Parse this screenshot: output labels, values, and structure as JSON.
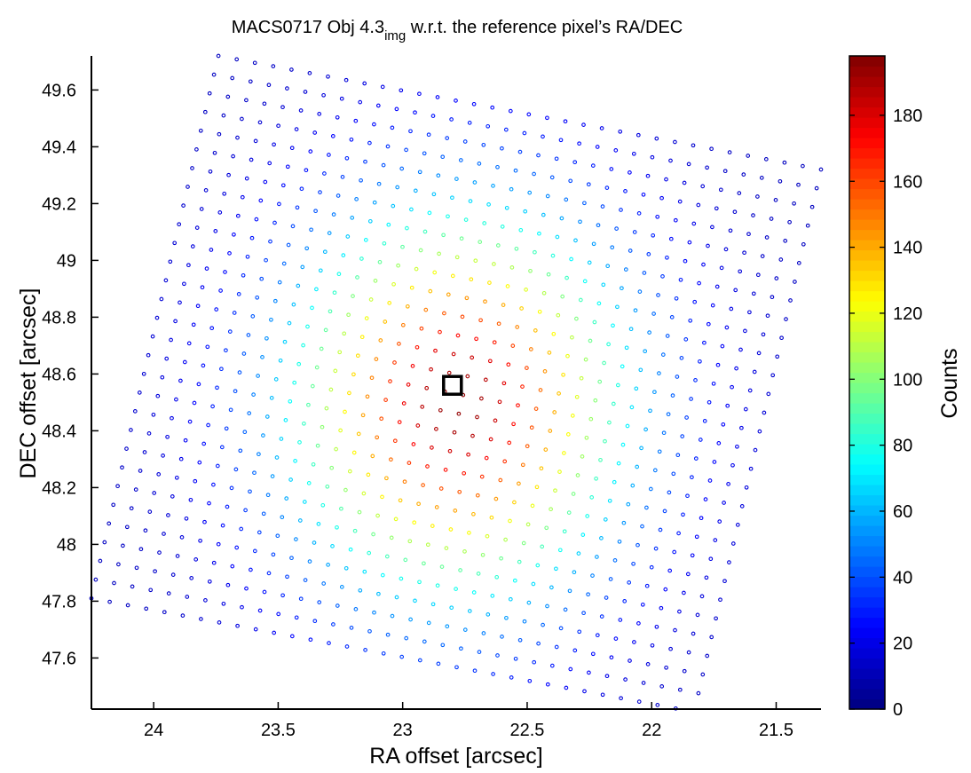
{
  "chart_data": {
    "type": "scatter",
    "title": {
      "main": "MACS0717 Obj 4.3",
      "subscript": "img",
      "suffix": " w.r.t. the reference pixel’s RA/DEC"
    },
    "xlabel": "RA offset [arcsec]",
    "ylabel": "DEC offset [arcsec]",
    "xlim": [
      24.25,
      21.32
    ],
    "ylim": [
      47.42,
      49.72
    ],
    "x_reversed": true,
    "x_ticks": [
      {
        "value": 24,
        "label": "24"
      },
      {
        "value": 23.5,
        "label": "23.5"
      },
      {
        "value": 23,
        "label": "23"
      },
      {
        "value": 22.5,
        "label": "22.5"
      },
      {
        "value": 22,
        "label": "22"
      },
      {
        "value": 21.5,
        "label": "21.5"
      }
    ],
    "y_ticks": [
      {
        "value": 47.6,
        "label": "47.6"
      },
      {
        "value": 47.8,
        "label": "47.8"
      },
      {
        "value": 48,
        "label": "48"
      },
      {
        "value": 48.2,
        "label": "48.2"
      },
      {
        "value": 48.4,
        "label": "48.4"
      },
      {
        "value": 48.6,
        "label": "48.6"
      },
      {
        "value": 48.8,
        "label": "48.8"
      },
      {
        "value": 49,
        "label": "49"
      },
      {
        "value": 49.2,
        "label": "49.2"
      },
      {
        "value": 49.4,
        "label": "49.4"
      },
      {
        "value": 49.6,
        "label": "49.6"
      }
    ],
    "grid": false,
    "colormap": "jet",
    "colorbar": {
      "label": "Counts",
      "range": [
        0,
        198
      ],
      "ticks": [
        {
          "value": 0,
          "label": "0"
        },
        {
          "value": 20,
          "label": "20"
        },
        {
          "value": 40,
          "label": "40"
        },
        {
          "value": 60,
          "label": "60"
        },
        {
          "value": 80,
          "label": "80"
        },
        {
          "value": 100,
          "label": "100"
        },
        {
          "value": 120,
          "label": "120"
        },
        {
          "value": 140,
          "label": "140"
        },
        {
          "value": 160,
          "label": "160"
        },
        {
          "value": 180,
          "label": "180"
        }
      ]
    },
    "grid_corners": {
      "top": [
        23.74,
        49.72
      ],
      "right": [
        21.32,
        49.32
      ],
      "left": [
        24.25,
        47.81
      ],
      "bottom": [
        21.84,
        47.42
      ]
    },
    "grid_rows": 30,
    "grid_cols": 34,
    "peak": {
      "ra": 22.78,
      "dec": 48.5,
      "counts": 195
    },
    "peak_spread_arcsec": 0.46,
    "reference_pixel": {
      "ra": 22.8,
      "dec": 48.56
    }
  }
}
